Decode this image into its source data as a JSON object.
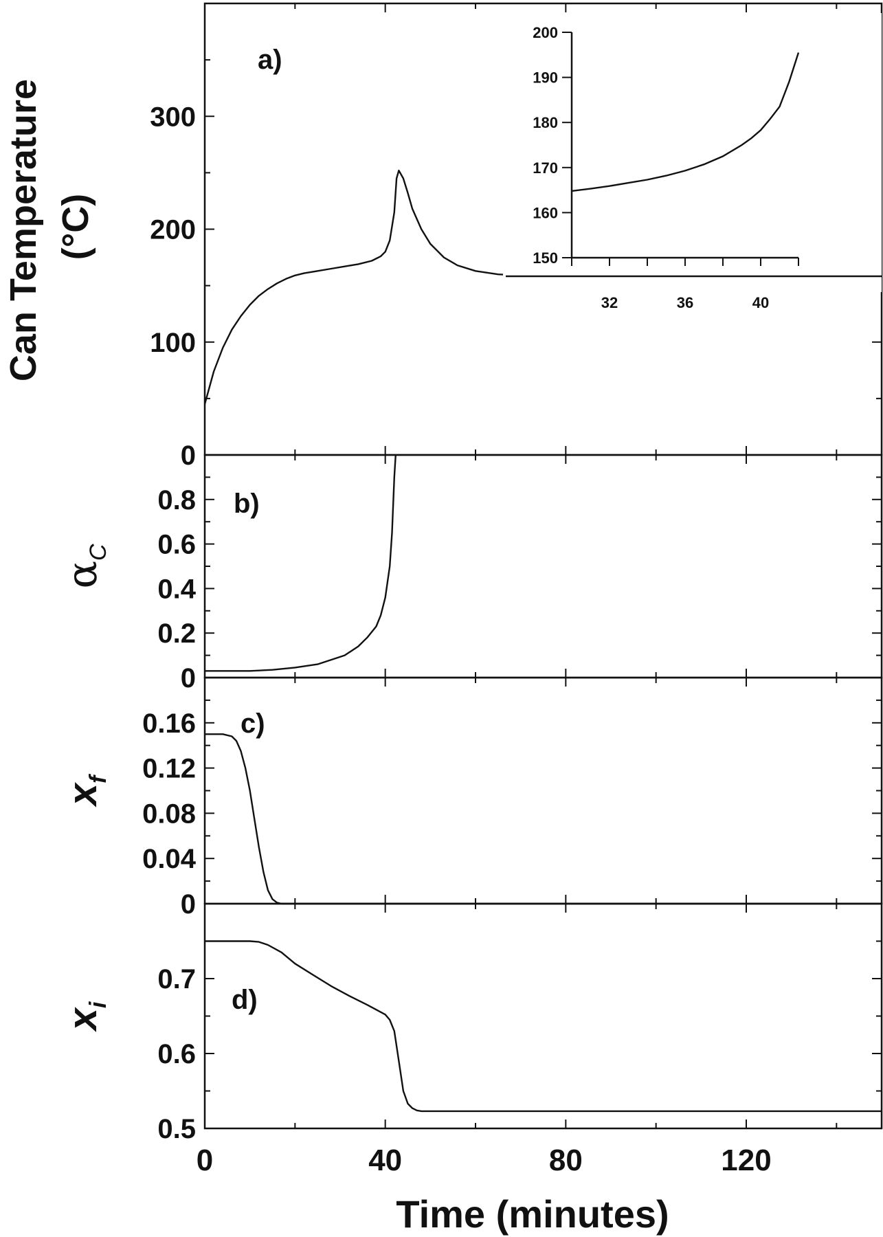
{
  "chart_data": [
    {
      "id": "a",
      "type": "line",
      "panel_label": "a)",
      "ylabel_line1": "Can Temperature",
      "ylabel_line2": "(°C)",
      "xlim": [
        0,
        150
      ],
      "ylim": [
        0,
        400
      ],
      "yticks": [
        0,
        100,
        200,
        300
      ],
      "y_tick_labels": [
        "0",
        "100",
        "200",
        "300"
      ],
      "series": [
        {
          "x": [
            0,
            2,
            4,
            6,
            8,
            10,
            12,
            14,
            16,
            18,
            20,
            22,
            25,
            28,
            31,
            34,
            37,
            39,
            40,
            41,
            42,
            42.5,
            43,
            44,
            45,
            46,
            48,
            50,
            53,
            56,
            60,
            65,
            70,
            80,
            100,
            120,
            150
          ],
          "y": [
            45,
            74,
            95,
            111,
            123,
            133,
            141,
            147,
            152,
            156,
            159,
            161,
            163,
            165,
            167,
            169,
            172,
            176,
            180,
            190,
            215,
            245,
            252,
            245,
            232,
            218,
            200,
            187,
            175,
            168,
            163,
            160,
            159,
            158,
            157,
            157,
            157
          ]
        }
      ]
    },
    {
      "id": "a-inset",
      "type": "line",
      "xlim": [
        30,
        42
      ],
      "ylim": [
        150,
        200
      ],
      "xticks": [
        32,
        36,
        40
      ],
      "x_tick_labels": [
        "32",
        "36",
        "40"
      ],
      "yticks": [
        150,
        160,
        170,
        180,
        190,
        200
      ],
      "y_tick_labels": [
        "150",
        "160",
        "170",
        "180",
        "190",
        "200"
      ],
      "series": [
        {
          "x": [
            30,
            31,
            32,
            33,
            34,
            35,
            36,
            37,
            38,
            39,
            39.5,
            40,
            40.5,
            41,
            41.5,
            42
          ],
          "y": [
            164.8,
            165.3,
            165.9,
            166.6,
            167.3,
            168.2,
            169.3,
            170.7,
            172.5,
            175.0,
            176.5,
            178.3,
            180.8,
            183.5,
            189.0,
            195.5
          ]
        }
      ]
    },
    {
      "id": "b",
      "type": "line",
      "panel_label": "b)",
      "ylabel": "α",
      "ylabel_sub": "C",
      "xlim": [
        0,
        150
      ],
      "ylim": [
        0,
        1
      ],
      "yticks": [
        0,
        0.2,
        0.4,
        0.6,
        0.8
      ],
      "y_tick_labels": [
        "0",
        "0.2",
        "0.4",
        "0.6",
        "0.8"
      ],
      "series": [
        {
          "x": [
            0,
            5,
            10,
            15,
            20,
            25,
            28,
            31,
            34,
            36,
            38,
            39,
            40,
            41,
            41.5,
            42,
            42.3
          ],
          "y": [
            0.03,
            0.03,
            0.03,
            0.035,
            0.045,
            0.06,
            0.08,
            0.1,
            0.14,
            0.18,
            0.23,
            0.28,
            0.36,
            0.5,
            0.65,
            0.9,
            1.0
          ]
        }
      ]
    },
    {
      "id": "c",
      "type": "line",
      "panel_label": "c)",
      "ylabel": "x",
      "ylabel_sub": "f",
      "xlim": [
        0,
        150
      ],
      "ylim": [
        0,
        0.2
      ],
      "yticks": [
        0,
        0.04,
        0.08,
        0.12,
        0.16
      ],
      "y_tick_labels": [
        "0",
        "0.04",
        "0.08",
        "0.12",
        "0.16"
      ],
      "series": [
        {
          "x": [
            0,
            4,
            6,
            7,
            8,
            9,
            10,
            11,
            12,
            13,
            14,
            15,
            16,
            17,
            150
          ],
          "y": [
            0.15,
            0.15,
            0.148,
            0.144,
            0.135,
            0.12,
            0.1,
            0.075,
            0.05,
            0.028,
            0.012,
            0.004,
            0.001,
            0,
            0
          ]
        }
      ]
    },
    {
      "id": "d",
      "type": "line",
      "panel_label": "d)",
      "ylabel": "x",
      "ylabel_sub": "i",
      "xlim": [
        0,
        150
      ],
      "ylim": [
        0.5,
        0.8
      ],
      "yticks": [
        0.5,
        0.6,
        0.7
      ],
      "y_tick_labels": [
        "0.5",
        "0.6",
        "0.7"
      ],
      "xticks": [
        0,
        40,
        80,
        120
      ],
      "x_tick_labels": [
        "0",
        "40",
        "80",
        "120"
      ],
      "xlabel": "Time (minutes)",
      "series": [
        {
          "x": [
            0,
            10,
            12,
            14,
            17,
            20,
            24,
            28,
            32,
            36,
            40,
            41,
            42,
            43,
            44,
            45,
            46,
            47,
            48,
            50,
            55,
            60,
            80,
            100,
            150
          ],
          "y": [
            0.75,
            0.75,
            0.749,
            0.745,
            0.735,
            0.72,
            0.705,
            0.69,
            0.677,
            0.665,
            0.652,
            0.645,
            0.63,
            0.59,
            0.55,
            0.533,
            0.527,
            0.524,
            0.523,
            0.523,
            0.523,
            0.523,
            0.523,
            0.523,
            0.523
          ]
        }
      ]
    }
  ]
}
